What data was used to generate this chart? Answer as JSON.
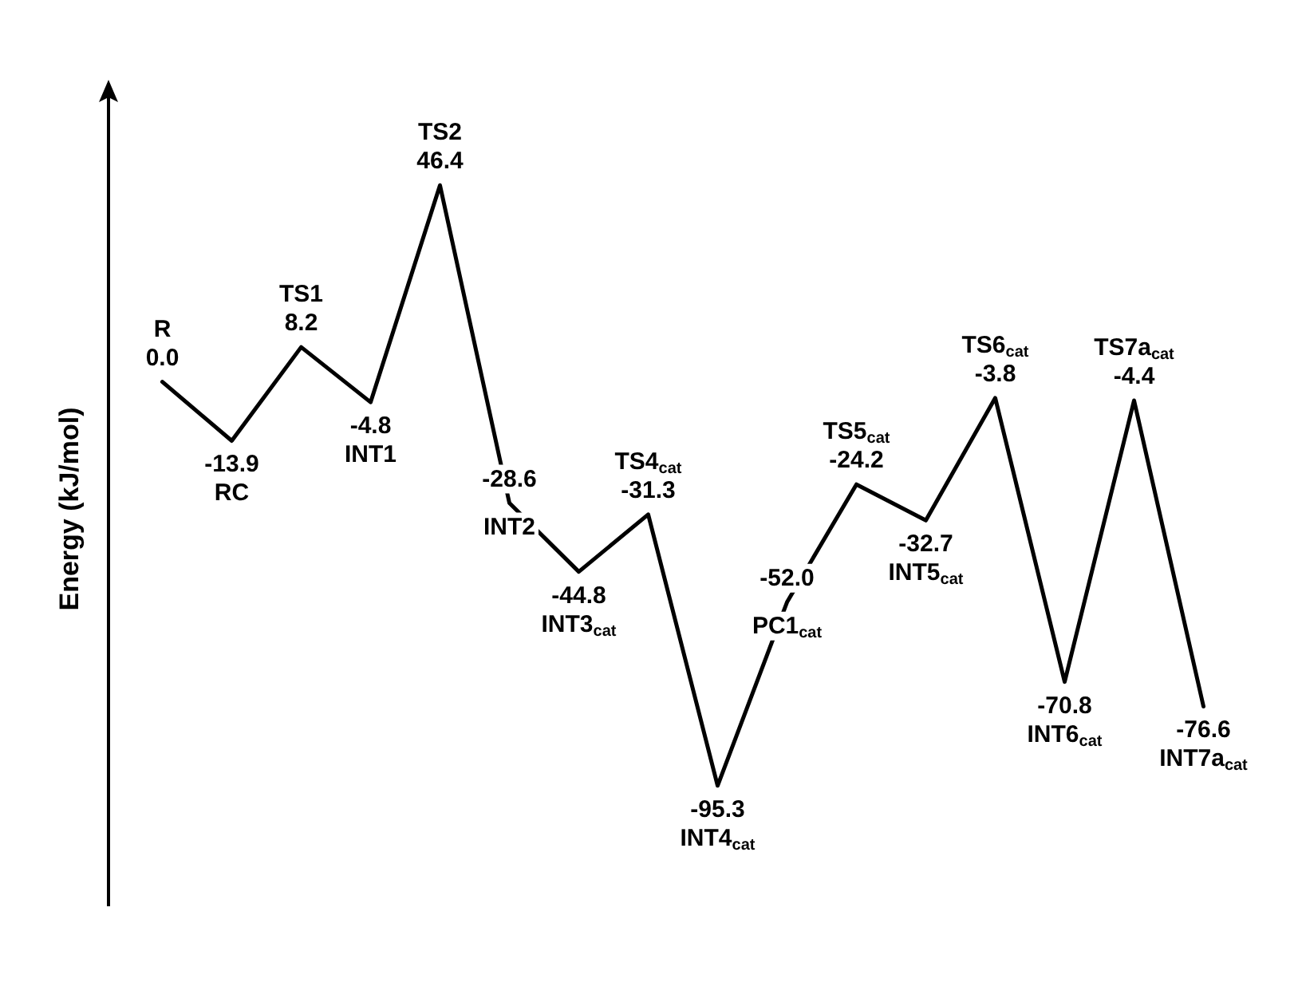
{
  "chart_data": {
    "type": "line",
    "ylabel": "Energy (kJ/mol)",
    "categories": [
      "R",
      "RC",
      "TS1",
      "INT1",
      "TS2",
      "INT2",
      "INT3$_{cat}$",
      "TS4$_{cat}$",
      "INT4$_{cat}$",
      "PC1$_{cat}$",
      "TS5$_{cat}$",
      "INT5$_{cat}$",
      "TS6$_{cat}$",
      "INT6$_{cat}$",
      "TS7a$_{cat}$",
      "INT7a$_{cat}$"
    ],
    "values": [
      0,
      -13.9,
      8.2,
      -4.8,
      46.4,
      -28.6,
      -44.8,
      -31.3,
      -95.3,
      -52,
      -24.2,
      -32.7,
      -3.8,
      -70.8,
      -4.4,
      -76.6
    ],
    "value_labels": [
      "0.0",
      "-13.9",
      "8.2",
      "-4.8",
      "46.4",
      "-28.6",
      "-44.8",
      "-31.3",
      "-95.3",
      "-52.0",
      "-24.2",
      "-32.7",
      "-3.8",
      "-70.8",
      "-4.4",
      "-76.6"
    ],
    "color": "#000000",
    "line_style": "solid",
    "grid": false,
    "tick_labels": false
  }
}
